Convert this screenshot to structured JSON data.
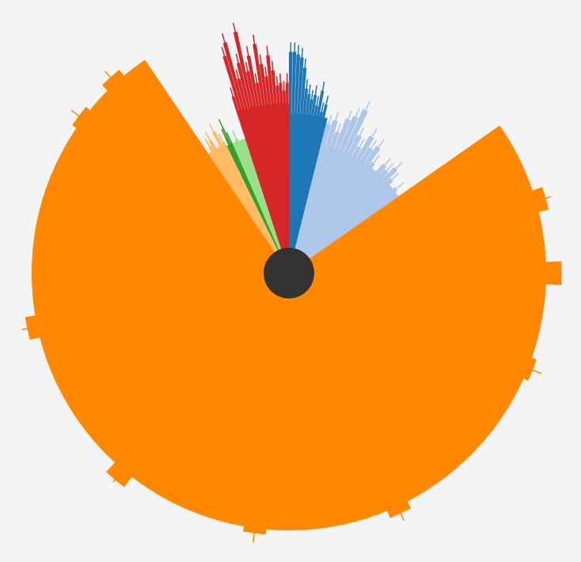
{
  "chart_data": {
    "type": "radial-bar",
    "title": "",
    "grid": false,
    "legend": "none",
    "center_color": "#333333",
    "groups": [
      {
        "color": "#ff8800",
        "start_deg": 55,
        "end_deg": 326,
        "base": 1.0,
        "values": [
          1.0,
          1.0,
          1.0,
          1.04,
          1.0,
          1.0,
          1.06,
          1.0,
          0.98,
          1.0,
          1.02,
          1.0,
          1.0,
          1.0,
          1.0,
          0.92,
          0.96,
          1.0,
          1.03,
          0.98,
          1.0,
          1.0,
          1.0,
          1.0,
          1.02,
          1.0,
          0.97,
          1.0,
          1.0,
          1.0,
          1.05,
          1.0,
          1.0,
          1.0,
          0.95,
          1.0,
          1.0,
          1.04,
          1.0,
          1.0,
          0.96,
          1.0,
          1.0,
          1.0,
          1.0,
          1.0,
          1.02,
          1.0,
          1.03,
          1.0
        ]
      },
      {
        "color": "#ffbb66",
        "start_deg": 326,
        "end_deg": 334,
        "base": 0.56,
        "values": [
          0.55,
          0.58,
          0.6,
          0.56,
          0.62,
          0.57
        ]
      },
      {
        "color": "#33a02c",
        "start_deg": 334,
        "end_deg": 336.5,
        "base": 0.55,
        "values": [
          0.55,
          0.58,
          0.62,
          0.56
        ]
      },
      {
        "color": "#98df8a",
        "start_deg": 336.5,
        "end_deg": 342,
        "base": 0.55,
        "values": [
          0.55,
          0.56,
          0.54,
          0.55
        ]
      },
      {
        "color": "#d62728",
        "start_deg": 342,
        "end_deg": 360,
        "base": 0.66,
        "values": [
          0.72,
          0.88,
          0.93,
          0.78,
          0.84,
          0.96,
          0.8,
          0.86,
          0.75,
          0.9,
          0.82,
          0.77,
          0.85,
          0.79,
          0.73,
          0.74,
          0.71,
          0.74
        ]
      },
      {
        "color": "#1f77b4",
        "start_deg": 0,
        "end_deg": 14,
        "base": 0.62,
        "values": [
          0.86,
          0.86,
          0.85,
          0.84,
          0.8,
          0.72,
          0.7,
          0.68,
          0.7,
          0.66,
          0.72,
          0.64,
          0.67,
          0.62
        ]
      },
      {
        "color": "#aec7e8",
        "start_deg": 14,
        "end_deg": 55,
        "base": 0.52,
        "values": [
          0.6,
          0.62,
          0.58,
          0.64,
          0.66,
          0.7,
          0.6,
          0.56,
          0.62,
          0.58,
          0.6,
          0.54,
          0.52,
          0.56,
          0.55,
          0.58,
          0.54,
          0.52,
          0.53,
          0.51
        ]
      }
    ]
  }
}
